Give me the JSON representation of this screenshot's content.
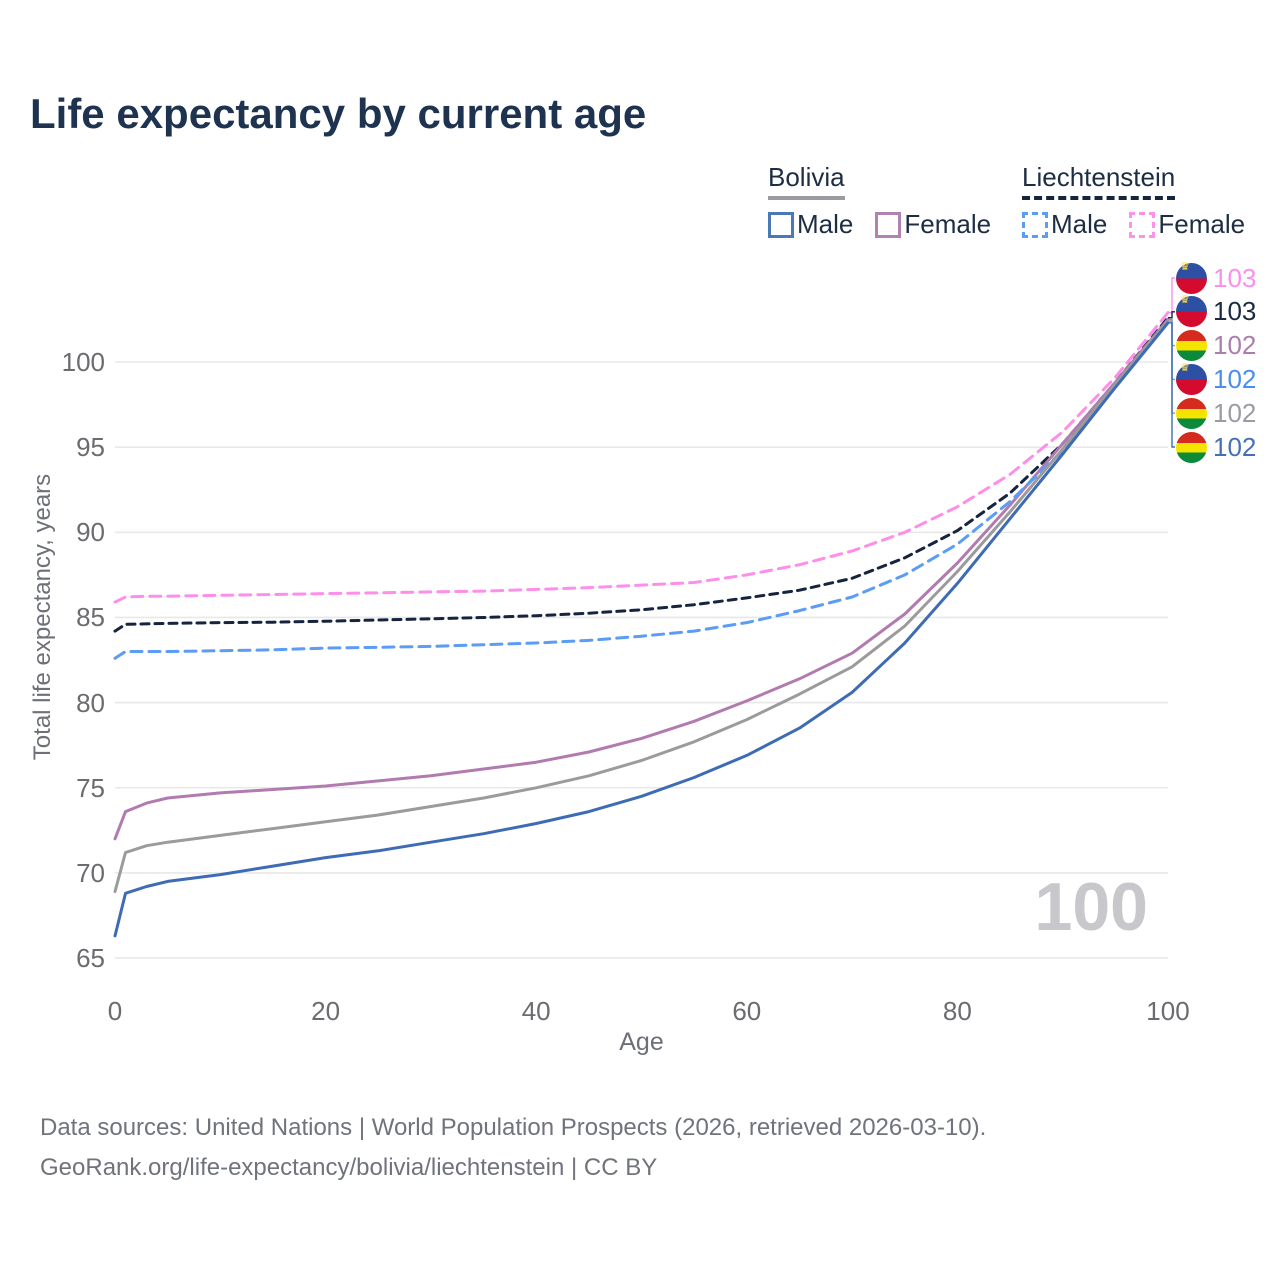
{
  "title": "Life expectancy by current age",
  "legend": {
    "groups": [
      {
        "name": "Bolivia",
        "underline_color": "#9a9aa0",
        "underline_style": "solid",
        "items": [
          {
            "label": "Male",
            "color": "#4a7ab5",
            "dashed": false
          },
          {
            "label": "Female",
            "color": "#b183b1",
            "dashed": false
          }
        ]
      },
      {
        "name": "Liechtenstein",
        "underline_color": "#16243e",
        "underline_style": "dashed",
        "items": [
          {
            "label": "Male",
            "color": "#5b9cf5",
            "dashed": true
          },
          {
            "label": "Female",
            "color": "#fd92ea",
            "dashed": true
          }
        ]
      }
    ]
  },
  "axes": {
    "y_title": "Total life expectancy, years",
    "x_title": "Age"
  },
  "watermark": "100",
  "footer": {
    "line1": "Data sources: United Nations | World Population Prospects (2026, retrieved 2026-03-10).",
    "line2": "GeoRank.org/life-expectancy/bolivia/liechtenstein | CC BY"
  },
  "chart_data": {
    "type": "line",
    "title": "Life expectancy by current age",
    "xlabel": "Age",
    "ylabel": "Total life expectancy, years",
    "xlim": [
      0,
      100
    ],
    "ylim": [
      65,
      103
    ],
    "x_ticks": [
      0,
      20,
      40,
      60,
      80,
      100
    ],
    "y_ticks": [
      65,
      70,
      75,
      80,
      85,
      90,
      95,
      100
    ],
    "grid": true,
    "legend_position": "top-right",
    "series": [
      {
        "name": "Liechtenstein Female",
        "country": "Liechtenstein",
        "sex": "Female",
        "color": "#fd8ee9",
        "dash": "11 7",
        "end_label": "103",
        "end_label_color": "#fd8ee9",
        "flag": "liechtenstein",
        "points": [
          [
            0,
            85.9
          ],
          [
            1,
            86.2
          ],
          [
            3,
            86.25
          ],
          [
            5,
            86.25
          ],
          [
            10,
            86.3
          ],
          [
            15,
            86.35
          ],
          [
            20,
            86.4
          ],
          [
            25,
            86.45
          ],
          [
            30,
            86.5
          ],
          [
            35,
            86.55
          ],
          [
            40,
            86.65
          ],
          [
            45,
            86.75
          ],
          [
            50,
            86.9
          ],
          [
            55,
            87.05
          ],
          [
            60,
            87.5
          ],
          [
            65,
            88.1
          ],
          [
            70,
            88.9
          ],
          [
            75,
            90.0
          ],
          [
            80,
            91.5
          ],
          [
            85,
            93.4
          ],
          [
            90,
            95.9
          ],
          [
            95,
            99.1
          ],
          [
            100,
            102.9
          ]
        ]
      },
      {
        "name": "Liechtenstein",
        "country": "Liechtenstein",
        "sex": "All",
        "color": "#16243e",
        "dash": "8 6",
        "end_label": "103",
        "end_label_color": "#1b2a42",
        "flag": "liechtenstein",
        "points": [
          [
            0,
            84.2
          ],
          [
            1,
            84.6
          ],
          [
            5,
            84.65
          ],
          [
            10,
            84.7
          ],
          [
            15,
            84.72
          ],
          [
            20,
            84.78
          ],
          [
            25,
            84.85
          ],
          [
            30,
            84.92
          ],
          [
            35,
            85.0
          ],
          [
            40,
            85.1
          ],
          [
            45,
            85.25
          ],
          [
            50,
            85.45
          ],
          [
            55,
            85.75
          ],
          [
            60,
            86.15
          ],
          [
            65,
            86.6
          ],
          [
            70,
            87.3
          ],
          [
            75,
            88.5
          ],
          [
            80,
            90.1
          ],
          [
            85,
            92.3
          ],
          [
            90,
            95.2
          ],
          [
            95,
            98.8
          ],
          [
            100,
            102.6
          ]
        ]
      },
      {
        "name": "Bolivia Female",
        "country": "Bolivia",
        "sex": "Female",
        "color": "#b27bb0",
        "dash": null,
        "end_label": "102",
        "end_label_color": "#aa7fae",
        "flag": "bolivia",
        "points": [
          [
            0,
            72.0
          ],
          [
            1,
            73.6
          ],
          [
            3,
            74.1
          ],
          [
            5,
            74.4
          ],
          [
            10,
            74.7
          ],
          [
            15,
            74.9
          ],
          [
            20,
            75.1
          ],
          [
            25,
            75.4
          ],
          [
            30,
            75.7
          ],
          [
            35,
            76.1
          ],
          [
            40,
            76.5
          ],
          [
            45,
            77.1
          ],
          [
            50,
            77.9
          ],
          [
            55,
            78.9
          ],
          [
            60,
            80.1
          ],
          [
            65,
            81.4
          ],
          [
            70,
            82.9
          ],
          [
            75,
            85.2
          ],
          [
            80,
            88.2
          ],
          [
            85,
            91.6
          ],
          [
            90,
            95.2
          ],
          [
            95,
            98.8
          ],
          [
            100,
            102.5
          ]
        ]
      },
      {
        "name": "Liechtenstein Male",
        "country": "Liechtenstein",
        "sex": "Male",
        "color": "#5b9cf6",
        "dash": "11 7",
        "end_label": "102",
        "end_label_color": "#4b8ef0",
        "flag": "liechtenstein",
        "points": [
          [
            0,
            82.6
          ],
          [
            1,
            83.0
          ],
          [
            5,
            83.0
          ],
          [
            10,
            83.05
          ],
          [
            15,
            83.1
          ],
          [
            20,
            83.2
          ],
          [
            25,
            83.25
          ],
          [
            30,
            83.3
          ],
          [
            35,
            83.4
          ],
          [
            40,
            83.5
          ],
          [
            45,
            83.65
          ],
          [
            50,
            83.9
          ],
          [
            55,
            84.2
          ],
          [
            60,
            84.7
          ],
          [
            65,
            85.4
          ],
          [
            70,
            86.2
          ],
          [
            75,
            87.5
          ],
          [
            80,
            89.3
          ],
          [
            85,
            91.8
          ],
          [
            90,
            94.8
          ],
          [
            95,
            98.6
          ],
          [
            100,
            102.4
          ]
        ]
      },
      {
        "name": "Bolivia",
        "country": "Bolivia",
        "sex": "All",
        "color": "#9b9b9b",
        "dash": null,
        "end_label": "102",
        "end_label_color": "#9b9ba1",
        "flag": "bolivia",
        "points": [
          [
            0,
            68.9
          ],
          [
            1,
            71.2
          ],
          [
            3,
            71.6
          ],
          [
            5,
            71.8
          ],
          [
            10,
            72.2
          ],
          [
            15,
            72.6
          ],
          [
            20,
            73.0
          ],
          [
            25,
            73.4
          ],
          [
            30,
            73.9
          ],
          [
            35,
            74.4
          ],
          [
            40,
            75.0
          ],
          [
            45,
            75.7
          ],
          [
            50,
            76.6
          ],
          [
            55,
            77.7
          ],
          [
            60,
            79.0
          ],
          [
            65,
            80.5
          ],
          [
            70,
            82.1
          ],
          [
            75,
            84.5
          ],
          [
            80,
            87.7
          ],
          [
            85,
            91.2
          ],
          [
            90,
            94.9
          ],
          [
            95,
            98.7
          ],
          [
            100,
            102.4
          ]
        ]
      },
      {
        "name": "Bolivia Male",
        "country": "Bolivia",
        "sex": "Male",
        "color": "#3e6cb4",
        "dash": null,
        "end_label": "102",
        "end_label_color": "#4471b6",
        "flag": "bolivia",
        "points": [
          [
            0,
            66.3
          ],
          [
            1,
            68.8
          ],
          [
            3,
            69.2
          ],
          [
            5,
            69.5
          ],
          [
            10,
            69.9
          ],
          [
            15,
            70.4
          ],
          [
            20,
            70.9
          ],
          [
            25,
            71.3
          ],
          [
            30,
            71.8
          ],
          [
            35,
            72.3
          ],
          [
            40,
            72.9
          ],
          [
            45,
            73.6
          ],
          [
            50,
            74.5
          ],
          [
            55,
            75.6
          ],
          [
            60,
            76.9
          ],
          [
            65,
            78.5
          ],
          [
            70,
            80.6
          ],
          [
            75,
            83.5
          ],
          [
            80,
            87.0
          ],
          [
            85,
            90.8
          ],
          [
            90,
            94.6
          ],
          [
            95,
            98.5
          ],
          [
            100,
            102.3
          ]
        ]
      }
    ]
  }
}
